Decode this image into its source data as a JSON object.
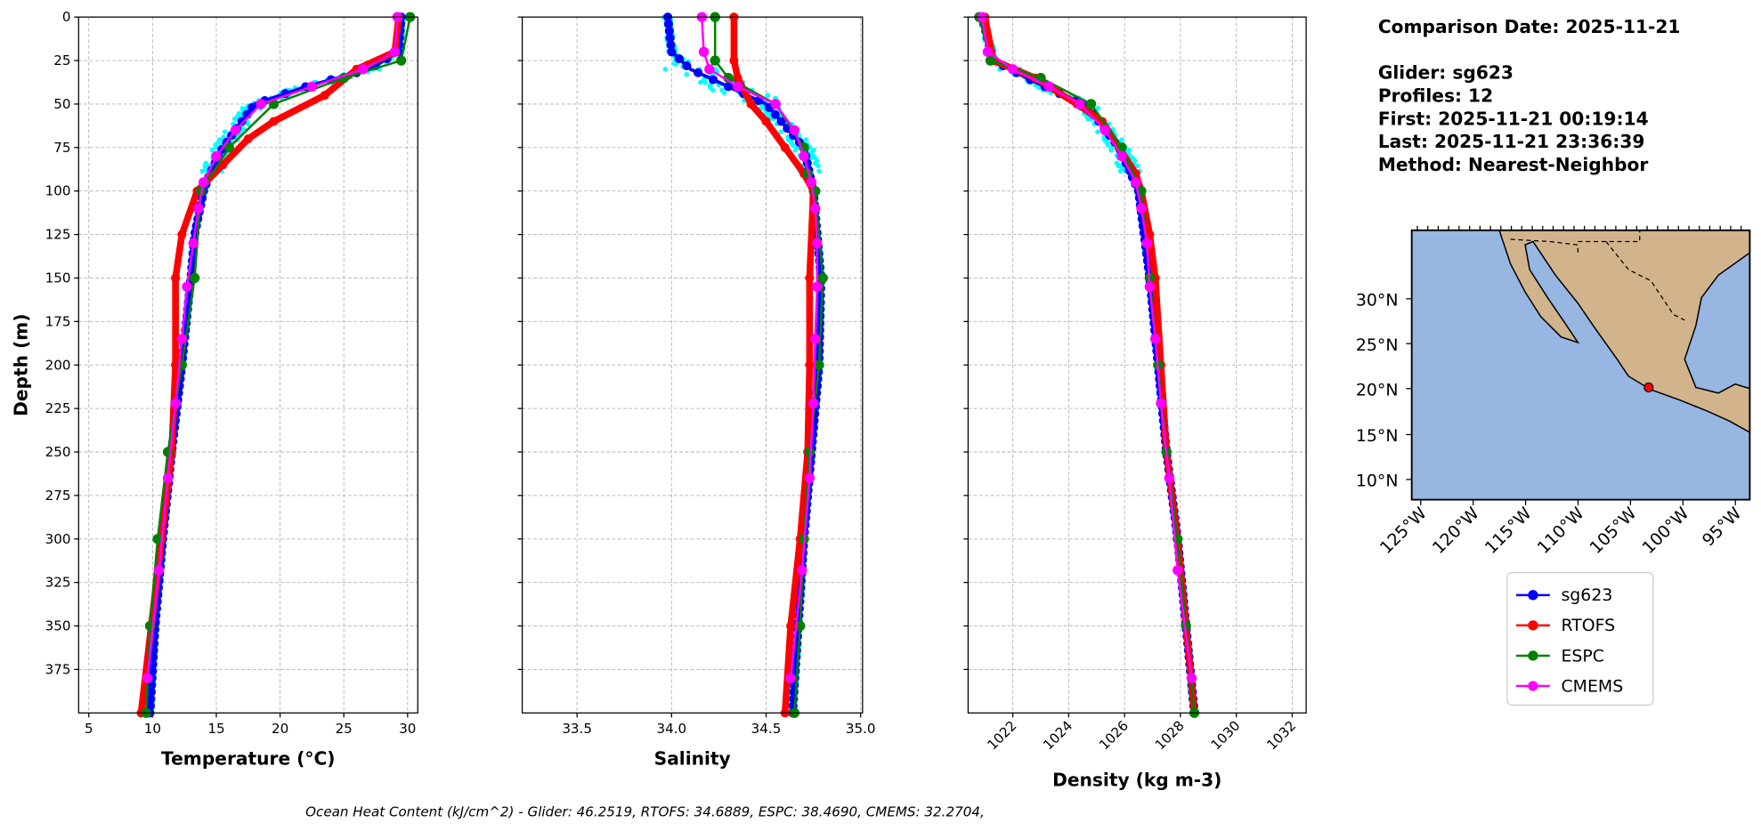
{
  "info": {
    "lines": [
      "Comparison Date: 2025-11-21",
      "",
      "Glider: sg623",
      "Profiles: 12",
      "First: 2025-11-21 00:19:14",
      "Last: 2025-11-21 23:36:39",
      "Method: Nearest-Neighbor"
    ]
  },
  "caption": "Ocean Heat Content (kJ/cm^2) - Glider: 46.2519,  RTOFS: 34.6889,  ESPC: 38.4690,  CMEMS: 32.2704,",
  "colors": {
    "sg623": "#0000ff",
    "RTOFS": "#ff0000",
    "ESPC": "#008000",
    "CMEMS": "#ff00ff",
    "raw": "#00ffff",
    "ocean": "#97b6e1",
    "land": "#d2b48c"
  },
  "chart_data": [
    {
      "type": "line",
      "xlabel": "Temperature (°C)",
      "ylabel": "Depth (m)",
      "xlim": [
        4.2,
        30.8
      ],
      "ylim": [
        400,
        0
      ],
      "grid": true,
      "xticks": [
        5,
        10,
        15,
        20,
        25,
        30
      ],
      "yticks": [
        0,
        25,
        50,
        75,
        100,
        125,
        150,
        175,
        200,
        225,
        250,
        275,
        300,
        325,
        350,
        375
      ],
      "series": [
        {
          "name": "sg623",
          "depth": [
            0,
            20,
            30,
            40,
            50,
            60,
            75,
            90,
            100,
            125,
            150,
            200,
            250,
            300,
            350,
            400
          ],
          "values": [
            29.5,
            29.3,
            27,
            22,
            18,
            17,
            15.5,
            14.5,
            14,
            13.3,
            13,
            12.3,
            11.5,
            10.8,
            10.2,
            9.8
          ]
        },
        {
          "name": "RTOFS",
          "depth": [
            0,
            20,
            30,
            45,
            60,
            70,
            85,
            100,
            125,
            150,
            200,
            250,
            300,
            350,
            400
          ],
          "values": [
            29.3,
            29,
            26,
            23.5,
            19.5,
            17.5,
            15.5,
            13.5,
            12.3,
            11.8,
            11.8,
            11.5,
            10.7,
            9.9,
            9.1
          ]
        },
        {
          "name": "ESPC",
          "depth": [
            0,
            25,
            35,
            50,
            75,
            100,
            150,
            200,
            250,
            300,
            350,
            400
          ],
          "values": [
            30.2,
            29.5,
            25,
            19.5,
            16,
            13.8,
            13.3,
            12.3,
            11.2,
            10.4,
            9.8,
            9.5
          ]
        },
        {
          "name": "CMEMS",
          "depth": [
            0,
            20,
            30,
            40,
            50,
            65,
            80,
            95,
            110,
            130,
            155,
            185,
            222,
            265,
            318,
            380
          ],
          "values": [
            29.2,
            29,
            26.5,
            22.5,
            18.5,
            16.5,
            15,
            14,
            13.6,
            13.2,
            12.7,
            12.3,
            11.8,
            11.2,
            10.5,
            9.6
          ]
        }
      ]
    },
    {
      "type": "line",
      "xlabel": "Salinity",
      "xlim": [
        33.21,
        35.01
      ],
      "ylim": [
        400,
        0
      ],
      "grid": true,
      "xticks": [
        33.5,
        34.0,
        34.5,
        35.0
      ],
      "series": [
        {
          "name": "sg623",
          "depth": [
            0,
            20,
            30,
            40,
            50,
            75,
            100,
            150,
            200,
            250,
            300,
            350,
            400
          ],
          "values": [
            33.98,
            34.0,
            34.1,
            34.3,
            34.5,
            34.7,
            34.75,
            34.79,
            34.78,
            34.74,
            34.7,
            34.67,
            34.64
          ]
        },
        {
          "name": "RTOFS",
          "depth": [
            0,
            25,
            35,
            50,
            60,
            75,
            90,
            100,
            150,
            200,
            250,
            300,
            350,
            400
          ],
          "values": [
            34.33,
            34.33,
            34.35,
            34.42,
            34.5,
            34.6,
            34.7,
            34.75,
            34.73,
            34.73,
            34.72,
            34.68,
            34.63,
            34.6
          ]
        },
        {
          "name": "ESPC",
          "depth": [
            0,
            25,
            35,
            50,
            75,
            90,
            100,
            150,
            200,
            250,
            300,
            350,
            400
          ],
          "values": [
            34.23,
            34.23,
            34.3,
            34.55,
            34.7,
            34.72,
            34.76,
            34.8,
            34.78,
            34.73,
            34.7,
            34.68,
            34.65
          ]
        },
        {
          "name": "CMEMS",
          "depth": [
            0,
            20,
            30,
            40,
            50,
            65,
            80,
            95,
            110,
            130,
            155,
            185,
            222,
            265,
            318,
            380
          ],
          "values": [
            34.16,
            34.17,
            34.2,
            34.35,
            34.55,
            34.65,
            34.7,
            34.74,
            34.76,
            34.77,
            34.77,
            34.76,
            34.75,
            34.73,
            34.69,
            34.63
          ]
        }
      ]
    },
    {
      "type": "line",
      "xlabel": "Density (kg m-3)",
      "xlim": [
        1020.4,
        1032.5
      ],
      "ylim": [
        400,
        0
      ],
      "grid": true,
      "xticks": [
        1022,
        1024,
        1026,
        1028,
        1030,
        1032
      ],
      "series": [
        {
          "name": "sg623",
          "depth": [
            0,
            25,
            35,
            45,
            50,
            75,
            100,
            150,
            200,
            250,
            300,
            350,
            400
          ],
          "values": [
            1020.9,
            1021.3,
            1022.5,
            1023.8,
            1024.6,
            1025.8,
            1026.5,
            1026.9,
            1027.2,
            1027.5,
            1027.9,
            1028.2,
            1028.5
          ]
        },
        {
          "name": "RTOFS",
          "depth": [
            0,
            25,
            35,
            50,
            60,
            75,
            90,
            100,
            125,
            150,
            200,
            250,
            300,
            350,
            400
          ],
          "values": [
            1021,
            1021.3,
            1022.8,
            1024.3,
            1025.2,
            1025.8,
            1026.4,
            1026.6,
            1026.9,
            1027.1,
            1027.3,
            1027.5,
            1027.9,
            1028.2,
            1028.5
          ]
        },
        {
          "name": "ESPC",
          "depth": [
            0,
            25,
            35,
            50,
            75,
            100,
            150,
            200,
            250,
            300,
            350,
            400
          ],
          "values": [
            1020.8,
            1021.2,
            1023,
            1024.8,
            1025.9,
            1026.6,
            1026.9,
            1027.2,
            1027.5,
            1027.9,
            1028.2,
            1028.5
          ]
        },
        {
          "name": "CMEMS",
          "depth": [
            0,
            20,
            30,
            40,
            50,
            65,
            80,
            95,
            110,
            130,
            155,
            185,
            222,
            265,
            318,
            380
          ],
          "values": [
            1020.9,
            1021.1,
            1022,
            1023.3,
            1024.4,
            1025.3,
            1025.9,
            1026.4,
            1026.6,
            1026.8,
            1026.9,
            1027.1,
            1027.3,
            1027.6,
            1027.9,
            1028.4
          ]
        }
      ]
    }
  ],
  "map": {
    "lat_ticks": [
      "30°N",
      "25°N",
      "20°N",
      "15°N",
      "10°N"
    ],
    "lon_ticks": [
      "125°W",
      "120°W",
      "115°W",
      "110°W",
      "105°W",
      "100°W",
      "95°W"
    ],
    "glider_position": {
      "lon": -104.8,
      "lat": 19.0
    }
  },
  "legend": [
    "sg623",
    "RTOFS",
    "ESPC",
    "CMEMS"
  ]
}
